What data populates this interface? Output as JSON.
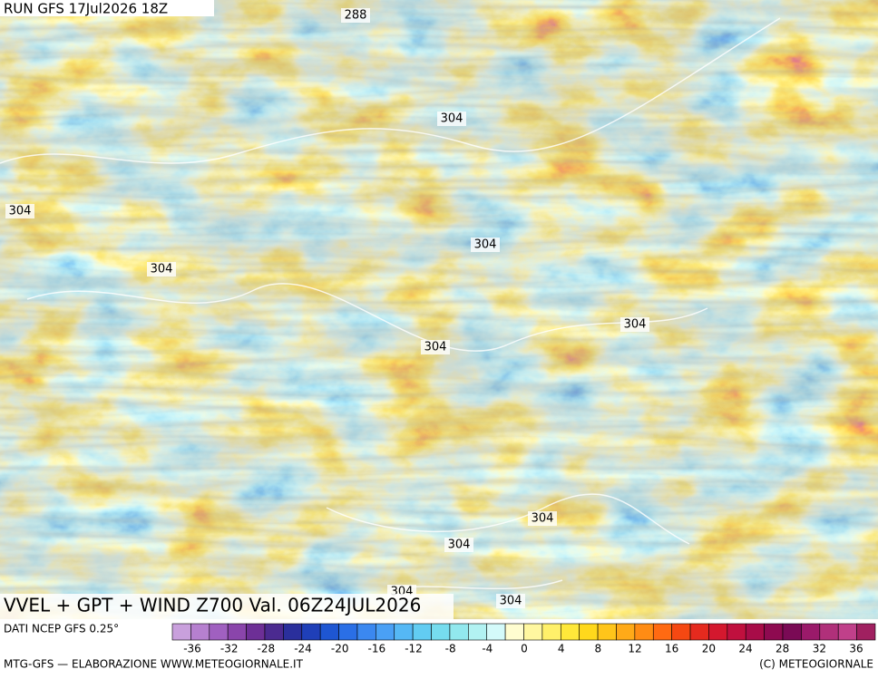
{
  "header": {
    "run": "RUN GFS 17Jul2026 18Z"
  },
  "map": {
    "contour_labels": [
      "288",
      "304",
      "304",
      "304",
      "304",
      "304",
      "304",
      "304",
      "304",
      "304",
      "304"
    ]
  },
  "title": "VVEL + GPT + WIND Z700 Val. 06Z24JUL2026",
  "legend": {
    "source": "DATI NCEP GFS 0.25°",
    "ticks": [
      -36,
      -32,
      -28,
      -24,
      -20,
      -16,
      -12,
      -8,
      -4,
      0,
      4,
      8,
      12,
      16,
      20,
      24,
      28,
      32,
      36
    ]
  },
  "footer": {
    "left": "MTG-GFS — ELABORAZIONE WWW.METEOGIORNALE.IT",
    "right": "(C) METEOGIORNALE"
  }
}
